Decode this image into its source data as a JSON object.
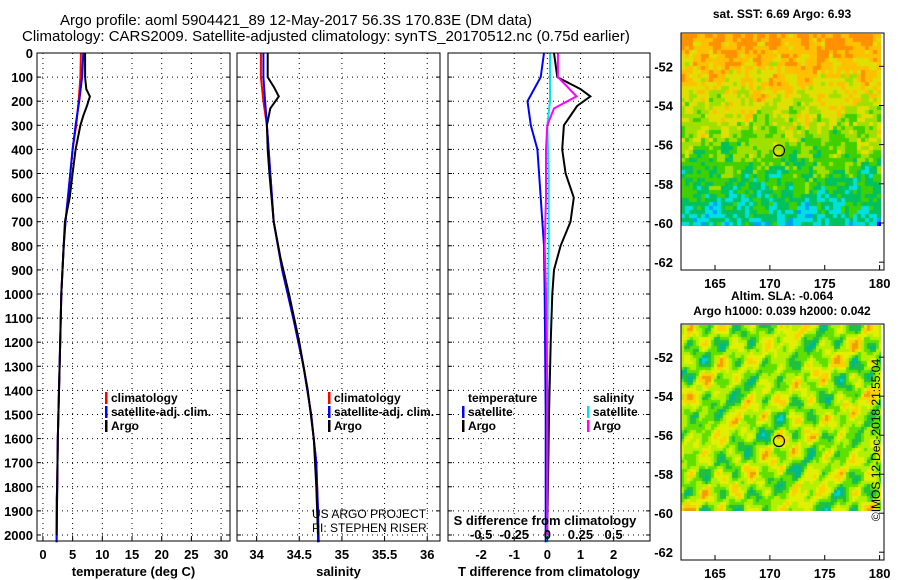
{
  "header": {
    "line1": "Argo profile: aoml 5904421_89 12-May-2017 56.3S 170.83E (DM data)",
    "line2": "Climatology: CARS2009. Satellite-adjusted climatology: synTS_20170512.nc (0.75d earlier)"
  },
  "stamp": "©IMOS 12-Dec-2018 21:55:04",
  "colors": {
    "climatology": "#ff0000",
    "satellite": "#0000ff",
    "argo": "#000000",
    "sal_satellite": "#00e5e5",
    "sal_argo": "#ff00ff"
  },
  "chart_data": [
    {
      "type": "line",
      "xlabel": "temperature (deg C)",
      "ylabel": "depth",
      "xlim": [
        -1,
        31.5
      ],
      "ylim": [
        0,
        2025
      ],
      "xticks": [
        "0",
        "5",
        "10",
        "15",
        "20",
        "25",
        "30"
      ],
      "xtick_values": [
        0,
        5,
        10,
        15,
        20,
        25,
        30
      ],
      "yticks": [
        "0",
        "100",
        "200",
        "300",
        "400",
        "500",
        "600",
        "700",
        "800",
        "900",
        "1000",
        "1100",
        "1200",
        "1300",
        "1400",
        "1500",
        "1600",
        "1700",
        "1800",
        "1900",
        "2000"
      ],
      "grid": true,
      "legend": {
        "placement": "center-left",
        "items": [
          "climatology",
          "satellite-adj. clim.",
          "Argo"
        ]
      },
      "series": [
        {
          "name": "climatology",
          "color": "#ff0000",
          "depth": [
            0,
            100,
            200,
            300,
            400,
            500,
            600,
            700,
            800,
            1000,
            1200,
            1400,
            1600,
            1800,
            1850,
            2030
          ],
          "values": [
            6.4,
            6.3,
            6.0,
            5.6,
            5.0,
            4.6,
            4.2,
            3.8,
            3.5,
            3.1,
            2.9,
            2.7,
            2.5,
            2.4,
            2.3,
            2.3
          ]
        },
        {
          "name": "satellite-adj. clim.",
          "color": "#0000ff",
          "depth": [
            0,
            100,
            200,
            300,
            400,
            500,
            600,
            700,
            800,
            1000,
            1200,
            1400,
            1600,
            1800,
            2030
          ],
          "values": [
            6.8,
            6.6,
            6.1,
            5.5,
            5.0,
            4.6,
            4.2,
            3.8,
            3.5,
            3.1,
            2.9,
            2.7,
            2.5,
            2.4,
            2.3
          ]
        },
        {
          "name": "Argo",
          "color": "#000000",
          "depth": [
            0,
            100,
            150,
            180,
            220,
            260,
            300,
            400,
            500,
            600,
            700,
            800,
            1000,
            1200,
            1400,
            1600,
            1800,
            2000
          ],
          "values": [
            7.1,
            7.1,
            7.3,
            7.9,
            7.4,
            6.8,
            6.3,
            5.5,
            5.0,
            4.5,
            3.7,
            3.5,
            3.1,
            2.9,
            2.7,
            2.5,
            2.4,
            2.3
          ]
        }
      ]
    },
    {
      "type": "line",
      "xlabel": "salinity",
      "xlim": [
        33.77,
        36.15
      ],
      "ylim": [
        0,
        2025
      ],
      "xticks": [
        "34",
        "34.5",
        "35",
        "35.5",
        "36"
      ],
      "xtick_values": [
        34,
        34.5,
        35,
        35.5,
        36
      ],
      "grid": true,
      "legend": {
        "placement": "center-right",
        "items": [
          "climatology",
          "satellite-adj. clim.",
          "Argo"
        ]
      },
      "annotations": [
        "US ARGO PROJECT",
        "PI: STEPHEN RISER"
      ],
      "series": [
        {
          "name": "climatology",
          "color": "#ff0000",
          "depth": [
            0,
            100,
            200,
            300,
            500,
            700,
            900,
            1100,
            1300,
            1500,
            1700,
            1900,
            2030
          ],
          "values": [
            34.05,
            34.05,
            34.08,
            34.12,
            34.16,
            34.2,
            34.3,
            34.43,
            34.55,
            34.64,
            34.7,
            34.72,
            34.73
          ]
        },
        {
          "name": "satellite-adj. clim.",
          "color": "#0000ff",
          "depth": [
            0,
            100,
            200,
            300,
            500,
            700,
            900,
            1100,
            1300,
            1500,
            1700,
            1900,
            2030
          ],
          "values": [
            34.08,
            34.08,
            34.1,
            34.12,
            34.16,
            34.2,
            34.3,
            34.43,
            34.55,
            34.64,
            34.7,
            34.72,
            34.72
          ]
        },
        {
          "name": "Argo",
          "color": "#000000",
          "depth": [
            0,
            100,
            140,
            180,
            230,
            300,
            400,
            500,
            700,
            850,
            1000,
            1200,
            1400,
            1600,
            1800,
            2000
          ],
          "values": [
            34.13,
            34.13,
            34.2,
            34.26,
            34.16,
            34.12,
            34.13,
            34.15,
            34.2,
            34.28,
            34.38,
            34.5,
            34.6,
            34.67,
            34.7,
            34.72
          ]
        }
      ]
    },
    {
      "type": "line",
      "xlabel": "T difference from climatology",
      "x2label": "S difference from climatology",
      "xlim": [
        -3,
        3.1
      ],
      "ylim": [
        0,
        2025
      ],
      "xticks": [
        "-2",
        "-1",
        "0",
        "1",
        "2"
      ],
      "xtick_values": [
        -2,
        -1,
        0,
        1,
        2
      ],
      "x2ticks": [
        "-0.5",
        "-0.25",
        "0",
        "0.25",
        "0.5"
      ],
      "x2tick_values": [
        -0.5,
        -0.25,
        0,
        0.25,
        0.5
      ],
      "grid": true,
      "legend": {
        "placement": "bottom",
        "items": [
          "temperature",
          "satellite",
          "Argo",
          "salinity",
          "satellite",
          "Argo"
        ]
      },
      "series": [
        {
          "name": "T satellite",
          "color": "#0000ff",
          "axis": "T",
          "depth": [
            0,
            100,
            150,
            200,
            300,
            400,
            600,
            800,
            1000,
            1500,
            2030
          ],
          "values": [
            -0.1,
            -0.2,
            -0.4,
            -0.6,
            -0.5,
            -0.3,
            -0.2,
            -0.1,
            -0.08,
            -0.05,
            -0.05
          ]
        },
        {
          "name": "T Argo",
          "color": "#000000",
          "axis": "T",
          "depth": [
            0,
            100,
            150,
            180,
            220,
            300,
            400,
            500,
            600,
            700,
            800,
            900,
            1000,
            1200,
            1500,
            2000
          ],
          "values": [
            0.2,
            0.3,
            1.0,
            1.3,
            0.9,
            0.5,
            0.45,
            0.55,
            0.8,
            0.7,
            0.4,
            0.2,
            0.15,
            0.1,
            0.05,
            0.0
          ]
        },
        {
          "name": "S satellite",
          "color": "#00e5e5",
          "axis": "S",
          "depth": [
            0,
            100,
            200,
            300,
            500,
            800,
            1200,
            1600,
            2030
          ],
          "values": [
            0.02,
            0.02,
            0.02,
            0.0,
            0.01,
            0.01,
            0.0,
            0.0,
            0.0
          ]
        },
        {
          "name": "S Argo",
          "color": "#ff00ff",
          "axis": "S",
          "depth": [
            0,
            100,
            140,
            180,
            230,
            300,
            400,
            600,
            800,
            1000,
            1400,
            2000
          ],
          "values": [
            0.08,
            0.08,
            0.15,
            0.22,
            0.05,
            0.0,
            -0.01,
            -0.01,
            -0.02,
            -0.01,
            0.0,
            0.0
          ]
        }
      ]
    }
  ],
  "maps": [
    {
      "title1": "sat. SST: 6.69 Argo: 6.93",
      "xticks": [
        "165",
        "170",
        "175",
        "180"
      ],
      "yticks": [
        "-52",
        "-54",
        "-56",
        "-58",
        "-60",
        "-62"
      ],
      "float_lon": 170.83,
      "float_lat": -56.3,
      "palette": "sst"
    },
    {
      "title1": "Altim. SLA: -0.064",
      "title2": "Argo h1000: 0.039 h2000: 0.042",
      "xticks": [
        "165",
        "170",
        "175",
        "180"
      ],
      "yticks": [
        "-52",
        "-54",
        "-56",
        "-58",
        "-60",
        "-62"
      ],
      "float_lon": 170.83,
      "float_lat": -56.3,
      "palette": "sla"
    }
  ],
  "legend_labels": {
    "p1": [
      "climatology",
      "satellite-adj. clim.",
      "Argo"
    ],
    "p2": [
      "climatology",
      "satellite-adj. clim.",
      "Argo"
    ],
    "p3_temp": [
      "temperature",
      "satellite",
      "Argo"
    ],
    "p3_sal": [
      "salinity",
      "satellite",
      "Argo"
    ]
  },
  "pi": {
    "project": "US ARGO PROJECT",
    "name": "PI: STEPHEN RISER"
  }
}
